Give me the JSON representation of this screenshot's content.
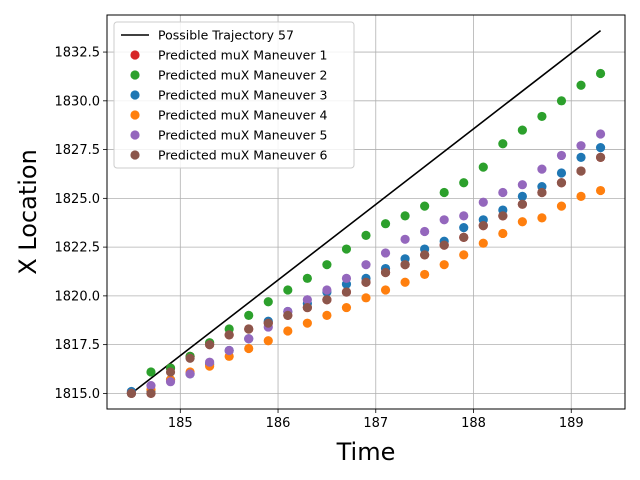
{
  "chart_data": {
    "type": "scatter",
    "title": "",
    "xlabel": "Time",
    "ylabel": "X Location",
    "xlim": [
      184.25,
      189.55
    ],
    "ylim": [
      1814.2,
      1834.4
    ],
    "xticks": [
      185,
      186,
      187,
      188,
      189
    ],
    "yticks": [
      1815.0,
      1817.5,
      1820.0,
      1822.5,
      1825.0,
      1827.5,
      1830.0,
      1832.5
    ],
    "grid": true,
    "legend_position": "upper-left",
    "x": [
      184.5,
      184.7,
      184.9,
      185.1,
      185.3,
      185.5,
      185.7,
      185.9,
      186.1,
      186.3,
      186.5,
      186.7,
      186.9,
      187.1,
      187.3,
      187.5,
      187.7,
      187.9,
      188.1,
      188.3,
      188.5,
      188.7,
      188.9,
      189.1,
      189.3
    ],
    "line": {
      "name": "Possible Trajectory 57",
      "color": "#000000",
      "x": [
        184.5,
        189.3
      ],
      "y": [
        1815.0,
        1833.6
      ]
    },
    "series": [
      {
        "name": "Predicted muX Maneuver 1",
        "color": "#d62728",
        "values": [
          1815.0,
          1815.0,
          1816.3,
          1816.9,
          1817.5,
          1818.0,
          1818.3,
          1818.6,
          1819.0,
          1819.4,
          1819.8,
          1820.2,
          1820.7,
          1821.2,
          1821.6,
          1822.1,
          1822.6,
          1823.0,
          1823.6,
          1824.1,
          1824.7,
          1825.3,
          1825.8,
          1826.4,
          1827.1
        ]
      },
      {
        "name": "Predicted muX Maneuver 2",
        "color": "#2ca02c",
        "values": [
          1815.0,
          1816.1,
          1816.3,
          1816.9,
          1817.6,
          1818.3,
          1819.0,
          1819.7,
          1820.3,
          1820.9,
          1821.6,
          1822.4,
          1823.1,
          1823.7,
          1824.1,
          1824.6,
          1825.3,
          1825.8,
          1826.6,
          1827.8,
          1828.5,
          1829.2,
          1830.0,
          1830.8,
          1831.4
        ]
      },
      {
        "name": "Predicted muX Maneuver 3",
        "color": "#1f77b4",
        "values": [
          1815.1,
          1815.1,
          1815.7,
          1816.0,
          1816.5,
          1817.2,
          1817.8,
          1818.7,
          1819.2,
          1819.6,
          1820.2,
          1820.6,
          1820.9,
          1821.4,
          1821.9,
          1822.4,
          1822.8,
          1823.5,
          1823.9,
          1824.4,
          1825.1,
          1825.6,
          1826.3,
          1827.1,
          1827.6
        ]
      },
      {
        "name": "Predicted muX Maneuver 4",
        "color": "#ff7f0e",
        "values": [
          1815.0,
          1815.2,
          1815.7,
          1816.1,
          1816.4,
          1816.9,
          1817.3,
          1817.7,
          1818.2,
          1818.6,
          1819.0,
          1819.4,
          1819.9,
          1820.3,
          1820.7,
          1821.1,
          1821.6,
          1822.1,
          1822.7,
          1823.2,
          1823.8,
          1824.0,
          1824.6,
          1825.1,
          1825.4
        ]
      },
      {
        "name": "Predicted muX Maneuver 5",
        "color": "#9467bd",
        "values": [
          1815.0,
          1815.4,
          1815.6,
          1816.0,
          1816.6,
          1817.2,
          1817.8,
          1818.4,
          1819.2,
          1819.8,
          1820.3,
          1820.9,
          1821.6,
          1822.2,
          1822.9,
          1823.3,
          1823.9,
          1824.1,
          1824.8,
          1825.3,
          1825.7,
          1826.5,
          1827.2,
          1827.7,
          1828.3
        ]
      },
      {
        "name": "Predicted muX Maneuver 6",
        "color": "#8c564b",
        "values": [
          1815.0,
          1815.0,
          1816.1,
          1816.8,
          1817.5,
          1818.0,
          1818.3,
          1818.6,
          1819.0,
          1819.4,
          1819.8,
          1820.2,
          1820.7,
          1821.2,
          1821.6,
          1822.1,
          1822.6,
          1823.0,
          1823.6,
          1824.1,
          1824.7,
          1825.3,
          1825.8,
          1826.4,
          1827.1
        ]
      }
    ]
  }
}
